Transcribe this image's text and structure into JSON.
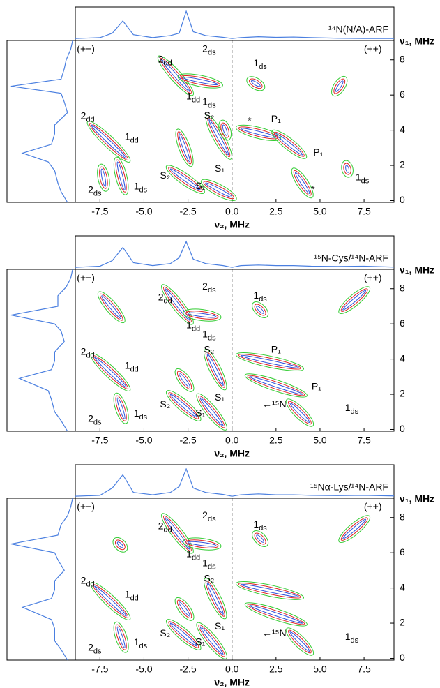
{
  "chart_data": [
    {
      "type": "contour",
      "title": "¹⁴N(N/A)-ARF",
      "xlabel": "ν₂, MHz",
      "ylabel": "ν₁, MHz",
      "xlim": [
        -8.9,
        9.2
      ],
      "ylim": [
        -0.1,
        9.1
      ],
      "xticks": [
        -7.5,
        {
          "value": -5,
          "label": "-5.0"
        },
        -2.5,
        {
          "value": 0,
          "label": "0.0"
        },
        2.5,
        {
          "value": 5,
          "label": "5.0"
        },
        7.5
      ],
      "yticks": [
        0,
        2,
        4,
        6,
        8
      ],
      "contour_colors": [
        "#33cc33",
        "#e02424",
        "#3355dd"
      ],
      "projection_color": "#4a7fe0",
      "top_projection": {
        "x": [
          -8.9,
          -7.5,
          -6.8,
          -6.2,
          -5.6,
          -4.5,
          -3.5,
          -3,
          -2.6,
          -2.2,
          -1.5,
          -0.5,
          0,
          0.5,
          1.5,
          2.5,
          3.5,
          4.5,
          6,
          7.5,
          9.2
        ],
        "values": [
          0.02,
          0.05,
          0.2,
          0.62,
          0.15,
          0.05,
          0.12,
          0.2,
          0.95,
          0.25,
          0.12,
          0.06,
          0.02,
          0.05,
          0.08,
          0.06,
          0.07,
          0.05,
          0.03,
          0.02,
          0.02
        ]
      },
      "left_projection": {
        "y": [
          -0.1,
          0.5,
          1,
          1.7,
          2.2,
          2.7,
          3.2,
          3.8,
          4.3,
          5,
          5.6,
          6.1,
          6.5,
          6.9,
          7.5,
          8,
          8.6,
          9.1
        ],
        "values": [
          0.1,
          0.2,
          0.25,
          0.3,
          0.4,
          0.8,
          0.35,
          0.3,
          0.3,
          0.1,
          0.15,
          0.2,
          0.98,
          0.2,
          0.15,
          0.12,
          0.05,
          0.02
        ]
      },
      "ridges": [
        {
          "x": [
            -8,
            -6
          ],
          "y": [
            4.3,
            2.4
          ]
        },
        {
          "x": [
            -6.5,
            -6.1
          ],
          "y": [
            2.2,
            0.6
          ]
        },
        {
          "x": [
            -7.4,
            -7.2
          ],
          "y": [
            1.8,
            0.8
          ]
        },
        {
          "x": [
            -4,
            -2.4
          ],
          "y": [
            8,
            6.2
          ]
        },
        {
          "x": [
            -2.8,
            -0.8
          ],
          "y": [
            7,
            6.6
          ]
        },
        {
          "x": [
            -3.5,
            -1.8
          ],
          "y": [
            1.8,
            0.6
          ]
        },
        {
          "x": [
            -1.5,
            0
          ],
          "y": [
            1,
            0.2
          ]
        },
        {
          "x": [
            -1.3,
            -0.2
          ],
          "y": [
            4.6,
            2.6
          ]
        },
        {
          "x": [
            -3,
            -2.4
          ],
          "y": [
            3.8,
            2.2
          ]
        },
        {
          "x": [
            -0.5,
            -0.3
          ],
          "y": [
            4.3,
            3.7
          ]
        },
        {
          "x": [
            0.5,
            2.5
          ],
          "y": [
            4.1,
            3.6
          ]
        },
        {
          "x": [
            2.5,
            4
          ],
          "y": [
            3.8,
            2.6
          ]
        },
        {
          "x": [
            3.6,
            4.4
          ],
          "y": [
            1.6,
            0.4
          ]
        },
        {
          "x": [
            1.1,
            1.6
          ],
          "y": [
            6.8,
            6.5
          ]
        },
        {
          "x": [
            6.3,
            5.9
          ],
          "y": [
            6.8,
            6.2
          ]
        },
        {
          "x": [
            6.5,
            6.6
          ],
          "y": [
            2,
            1.6
          ]
        }
      ],
      "annotations": [
        "(+−)",
        "(++)",
        {
          "text": "2",
          "sub": "dd"
        },
        {
          "text": "2",
          "sub": "ds"
        },
        {
          "text": "1",
          "sub": "dd"
        },
        {
          "text": "1",
          "sub": "ds"
        },
        {
          "text": "1",
          "sub": "ds"
        },
        "S₂",
        "*",
        "P₁",
        "P₁",
        {
          "text": "2",
          "sub": "dd"
        },
        {
          "text": "1",
          "sub": "dd"
        },
        "S₂",
        "S₁",
        "S₁",
        {
          "text": "2",
          "sub": "ds"
        },
        {
          "text": "1",
          "sub": "ds"
        },
        "*",
        {
          "text": "1",
          "sub": "ds"
        }
      ]
    },
    {
      "type": "contour",
      "title": "¹⁵N-Cys/¹⁴N-ARF",
      "xlabel": "ν₂, MHz",
      "ylabel": "ν₁, MHz",
      "xlim": [
        -8.9,
        9.2
      ],
      "ylim": [
        -0.1,
        9.1
      ],
      "xticks": [
        -7.5,
        {
          "value": -5,
          "label": "-5.0"
        },
        -2.5,
        {
          "value": 0,
          "label": "0.0"
        },
        2.5,
        {
          "value": 5,
          "label": "5.0"
        },
        7.5
      ],
      "yticks": [
        0,
        2,
        4,
        6,
        8
      ],
      "contour_colors": [
        "#33cc33",
        "#e02424",
        "#3355dd"
      ],
      "projection_color": "#4a7fe0",
      "top_projection": {
        "x": [
          -8.9,
          -7.5,
          -6.8,
          -6.2,
          -5.6,
          -4.5,
          -3.5,
          -3,
          -2.6,
          -2.2,
          -1.5,
          -0.5,
          0,
          0.5,
          1.5,
          2.5,
          3.5,
          4.5,
          6,
          7.5,
          9.2
        ],
        "values": [
          0.02,
          0.06,
          0.25,
          0.7,
          0.18,
          0.08,
          0.15,
          0.35,
          0.9,
          0.3,
          0.15,
          0.08,
          0.02,
          0.08,
          0.1,
          0.08,
          0.08,
          0.06,
          0.05,
          0.06,
          0.03
        ]
      },
      "left_projection": {
        "y": [
          -0.1,
          0.5,
          1,
          1.7,
          2.2,
          2.9,
          3.4,
          3.9,
          4.4,
          5,
          5.6,
          6,
          6.5,
          7,
          7.6,
          8.1,
          8.6,
          9.1
        ],
        "values": [
          0.1,
          0.2,
          0.3,
          0.35,
          0.4,
          0.85,
          0.35,
          0.3,
          0.3,
          0.15,
          0.2,
          0.3,
          0.98,
          0.25,
          0.25,
          0.12,
          0.05,
          0.02
        ]
      },
      "ridges": [
        {
          "x": [
            -7.8,
            -6
          ],
          "y": [
            4.1,
            2.4
          ]
        },
        {
          "x": [
            -6.5,
            -6.1
          ],
          "y": [
            1.8,
            0.6
          ]
        },
        {
          "x": [
            -7.4,
            -6.3
          ],
          "y": [
            7.6,
            6.3
          ]
        },
        {
          "x": [
            -3.8,
            -2.4
          ],
          "y": [
            8,
            6.2
          ]
        },
        {
          "x": [
            -2.5,
            -0.9
          ],
          "y": [
            6.6,
            6.4
          ]
        },
        {
          "x": [
            -3.5,
            -2
          ],
          "y": [
            2,
            0.7
          ]
        },
        {
          "x": [
            -1.8,
            -0.5
          ],
          "y": [
            1.8,
            0.2
          ]
        },
        {
          "x": [
            -1.4,
            -0.5
          ],
          "y": [
            4.3,
            2.5
          ]
        },
        {
          "x": [
            -3,
            -2.4
          ],
          "y": [
            3.2,
            2.4
          ]
        },
        {
          "x": [
            0.5,
            3.8
          ],
          "y": [
            4.2,
            3.5
          ]
        },
        {
          "x": [
            1,
            4
          ],
          "y": [
            3,
            2
          ]
        },
        {
          "x": [
            3.3,
            4.4
          ],
          "y": [
            1.5,
            0.4
          ]
        },
        {
          "x": [
            1.4,
            1.8
          ],
          "y": [
            7,
            6.6
          ]
        },
        {
          "x": [
            6.3,
            7.6
          ],
          "y": [
            6.8,
            7.9
          ]
        }
      ],
      "annotations": [
        "(+−)",
        "(++)",
        {
          "text": "2",
          "sub": "dd"
        },
        {
          "text": "2",
          "sub": "ds"
        },
        {
          "text": "1",
          "sub": "dd"
        },
        {
          "text": "1",
          "sub": "ds"
        },
        {
          "text": "1",
          "sub": "ds"
        },
        "S₂",
        "P₁",
        "P₁",
        {
          "text": "2",
          "sub": "dd"
        },
        {
          "text": "1",
          "sub": "dd"
        },
        "S₂",
        "S₁",
        "S₁",
        {
          "text": "2",
          "sub": "ds"
        },
        {
          "text": "1",
          "sub": "ds"
        },
        "←¹⁵N",
        {
          "text": "1",
          "sub": "ds"
        }
      ]
    },
    {
      "type": "contour",
      "title": "¹⁵Nα-Lys/¹⁴N-ARF",
      "xlabel": "ν₂, MHz",
      "ylabel": "ν₁, MHz",
      "xlim": [
        -8.9,
        9.2
      ],
      "ylim": [
        -0.1,
        9.1
      ],
      "xticks": [
        -7.5,
        {
          "value": -5,
          "label": "-5.0"
        },
        -2.5,
        {
          "value": 0,
          "label": "0.0"
        },
        2.5,
        {
          "value": 5,
          "label": "5.0"
        },
        7.5
      ],
      "yticks": [
        0,
        2,
        4,
        6,
        8
      ],
      "contour_colors": [
        "#33cc33",
        "#e02424",
        "#3355dd"
      ],
      "projection_color": "#4a7fe0",
      "top_projection": {
        "x": [
          -8.9,
          -7.5,
          -6.8,
          -6.2,
          -5.6,
          -4.5,
          -3.5,
          -3,
          -2.6,
          -2.2,
          -1.5,
          -0.5,
          0,
          0.5,
          1.5,
          2.5,
          3.5,
          4.5,
          6,
          7.5,
          9.2
        ],
        "values": [
          0.02,
          0.05,
          0.3,
          0.75,
          0.15,
          0.07,
          0.15,
          0.35,
          0.95,
          0.3,
          0.15,
          0.08,
          0.02,
          0.07,
          0.1,
          0.07,
          0.07,
          0.05,
          0.04,
          0.05,
          0.03
        ]
      },
      "left_projection": {
        "y": [
          -0.1,
          0.5,
          1,
          1.7,
          2.2,
          2.9,
          3.4,
          3.9,
          4.4,
          5,
          5.6,
          6,
          6.5,
          7,
          7.6,
          8.1,
          8.6,
          9.1
        ],
        "values": [
          0.1,
          0.2,
          0.3,
          0.3,
          0.35,
          0.8,
          0.35,
          0.3,
          0.3,
          0.15,
          0.25,
          0.3,
          0.98,
          0.25,
          0.2,
          0.1,
          0.05,
          0.02
        ]
      },
      "ridges": [
        {
          "x": [
            -7.8,
            -6
          ],
          "y": [
            4.1,
            2.4
          ]
        },
        {
          "x": [
            -6.5,
            -6.1
          ],
          "y": [
            1.8,
            0.6
          ]
        },
        {
          "x": [
            -6.5,
            -6.2
          ],
          "y": [
            6.6,
            6.3
          ]
        },
        {
          "x": [
            -3.8,
            -2.4
          ],
          "y": [
            8,
            6.2
          ]
        },
        {
          "x": [
            -2.5,
            -0.9
          ],
          "y": [
            6.6,
            6.4
          ]
        },
        {
          "x": [
            -3.5,
            -2
          ],
          "y": [
            2,
            0.7
          ]
        },
        {
          "x": [
            -1.8,
            -0.5
          ],
          "y": [
            1.8,
            0.2
          ]
        },
        {
          "x": [
            -1.4,
            -0.5
          ],
          "y": [
            4.3,
            2.5
          ]
        },
        {
          "x": [
            -3,
            -2.4
          ],
          "y": [
            3.2,
            2.4
          ]
        },
        {
          "x": [
            0.5,
            3.8
          ],
          "y": [
            4.2,
            3.5
          ]
        },
        {
          "x": [
            1,
            4
          ],
          "y": [
            3,
            2
          ]
        },
        {
          "x": [
            3.3,
            4.4
          ],
          "y": [
            1.5,
            0.4
          ]
        },
        {
          "x": [
            1.4,
            1.8
          ],
          "y": [
            7,
            6.6
          ]
        },
        {
          "x": [
            6.3,
            7.6
          ],
          "y": [
            6.8,
            7.9
          ]
        }
      ],
      "annotations": [
        "(+−)",
        "(++)",
        {
          "text": "2",
          "sub": "dd"
        },
        {
          "text": "2",
          "sub": "ds"
        },
        {
          "text": "1",
          "sub": "dd"
        },
        {
          "text": "1",
          "sub": "ds"
        },
        {
          "text": "1",
          "sub": "ds"
        },
        "S₂",
        {
          "text": "2",
          "sub": "dd"
        },
        {
          "text": "1",
          "sub": "dd"
        },
        "S₂",
        "S₁",
        "S₁",
        {
          "text": "2",
          "sub": "ds"
        },
        {
          "text": "1",
          "sub": "ds"
        },
        "←¹⁵N",
        {
          "text": "1",
          "sub": "ds"
        }
      ]
    }
  ]
}
